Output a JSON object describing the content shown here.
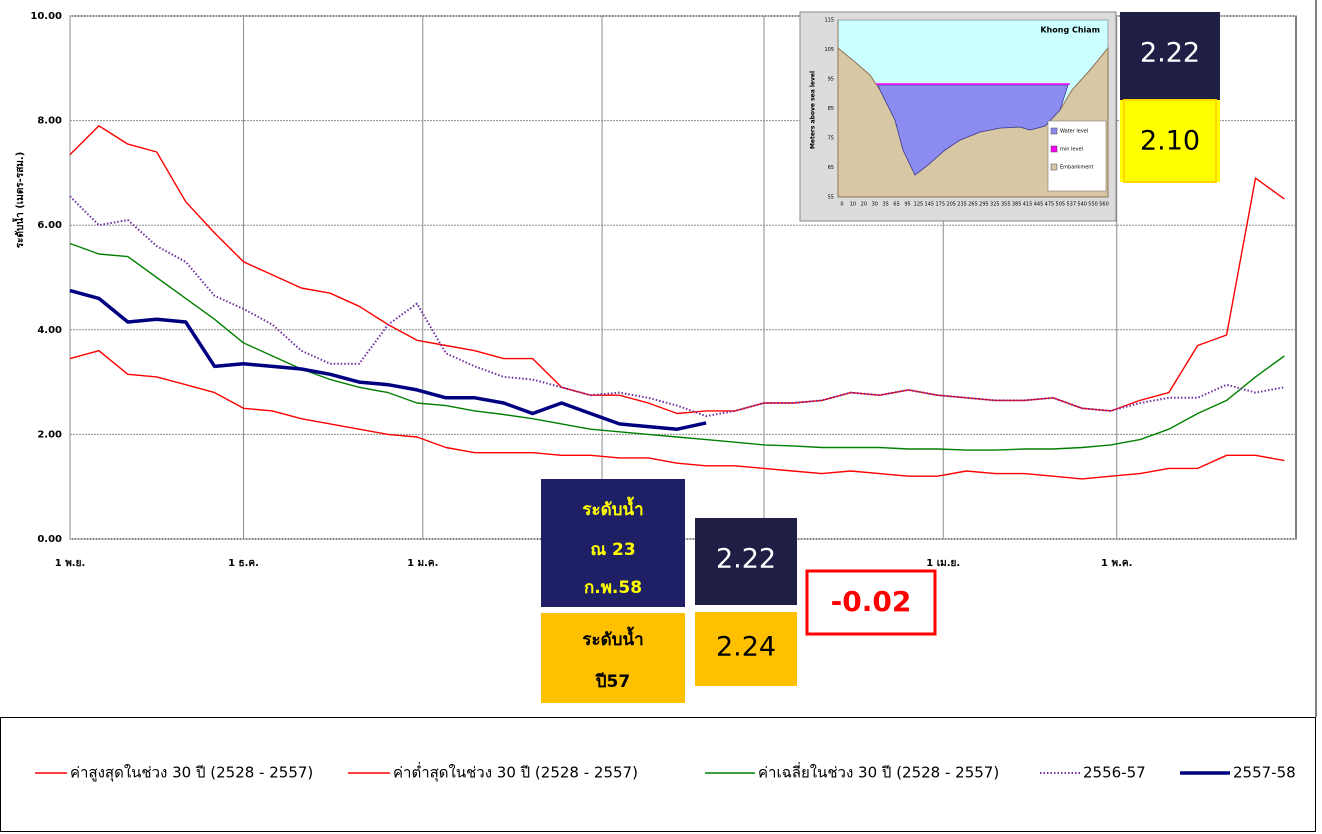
{
  "chart_data": {
    "type": "line",
    "y_label": "ระดับน้ำ (เมตร-รสม.)",
    "x": [
      0,
      5,
      10,
      15,
      20,
      25,
      30,
      35,
      40,
      45,
      50,
      55,
      60,
      65,
      70,
      75,
      80,
      85,
      90,
      95,
      100,
      105,
      110,
      115,
      120,
      125,
      130,
      135,
      140,
      145,
      150,
      155,
      160,
      165,
      170,
      175,
      180,
      185,
      190,
      195,
      200,
      205,
      210
    ],
    "xlim": [
      0,
      212
    ],
    "xticks": [
      {
        "value": 0,
        "label": "1 พ.ย."
      },
      {
        "value": 30,
        "label": "1 ธ.ค."
      },
      {
        "value": 61,
        "label": "1 ม.ค."
      },
      {
        "value": 92,
        "label": null
      },
      {
        "value": 120,
        "label": null
      },
      {
        "value": 151,
        "label": "1 เม.ย."
      },
      {
        "value": 181,
        "label": "1 พ.ค."
      }
    ],
    "ylim": [
      0,
      10
    ],
    "yticks": [
      {
        "value": 0,
        "label": "0.00"
      },
      {
        "value": 2,
        "label": "2.00"
      },
      {
        "value": 4,
        "label": "4.00"
      },
      {
        "value": 6,
        "label": "6.00"
      },
      {
        "value": 8,
        "label": "8.00"
      },
      {
        "value": 10,
        "label": "10.00"
      }
    ],
    "grid": true,
    "series": [
      {
        "name": "ค่าสูงสุดในช่วง 30 ปี (2528 - 2557)",
        "color": "#ff0000",
        "line_style": "solid",
        "values": [
          7.35,
          7.9,
          7.55,
          7.4,
          6.45,
          5.85,
          5.3,
          5.05,
          4.8,
          4.7,
          4.45,
          4.1,
          3.8,
          3.7,
          3.6,
          3.45,
          3.45,
          2.9,
          2.75,
          2.75,
          2.6,
          2.4,
          2.45,
          2.45,
          2.6,
          2.6,
          2.65,
          2.8,
          2.75,
          2.85,
          2.75,
          2.7,
          2.65,
          2.65,
          2.7,
          2.5,
          2.45,
          2.65,
          2.8,
          3.7,
          3.9,
          6.9,
          6.5
        ]
      },
      {
        "name": "ค่าต่ำสุดในช่วง 30 ปี (2528 - 2557)",
        "color": "#ff0000",
        "line_style": "solid",
        "values": [
          3.45,
          3.6,
          3.15,
          3.1,
          2.95,
          2.8,
          2.5,
          2.45,
          2.3,
          2.2,
          2.1,
          2.0,
          1.95,
          1.75,
          1.65,
          1.65,
          1.65,
          1.6,
          1.6,
          1.55,
          1.55,
          1.45,
          1.4,
          1.4,
          1.35,
          1.3,
          1.25,
          1.3,
          1.25,
          1.2,
          1.2,
          1.3,
          1.25,
          1.25,
          1.2,
          1.15,
          1.2,
          1.25,
          1.35,
          1.35,
          1.6,
          1.6,
          1.5
        ]
      },
      {
        "name": "ค่าเฉลี่ยในช่วง 30 ปี (2528 - 2557)",
        "color": "#008000",
        "line_style": "solid",
        "values": [
          5.65,
          5.45,
          5.4,
          5.0,
          4.6,
          4.2,
          3.75,
          3.5,
          3.25,
          3.05,
          2.9,
          2.8,
          2.6,
          2.55,
          2.45,
          2.38,
          2.3,
          2.2,
          2.1,
          2.05,
          2.0,
          1.95,
          1.9,
          1.85,
          1.8,
          1.78,
          1.75,
          1.75,
          1.75,
          1.72,
          1.72,
          1.7,
          1.7,
          1.72,
          1.72,
          1.75,
          1.8,
          1.9,
          2.1,
          2.4,
          2.65,
          3.1,
          3.5
        ]
      },
      {
        "name": "2556-57",
        "color": "#7030a0",
        "line_style": "dotted",
        "values": [
          6.55,
          6.0,
          6.1,
          5.6,
          5.3,
          4.65,
          4.4,
          4.1,
          3.6,
          3.35,
          3.35,
          4.1,
          4.5,
          3.55,
          3.3,
          3.1,
          3.05,
          2.9,
          2.75,
          2.8,
          2.7,
          2.55,
          2.35,
          2.45,
          2.6,
          2.6,
          2.65,
          2.8,
          2.75,
          2.85,
          2.75,
          2.7,
          2.65,
          2.65,
          2.7,
          2.5,
          2.45,
          2.6,
          2.7,
          2.7,
          2.95,
          2.8,
          2.9
        ]
      },
      {
        "name": "2557-58",
        "color": "#000080",
        "line_style": "bold",
        "values": [
          4.75,
          4.6,
          4.15,
          4.2,
          4.15,
          3.3,
          3.35,
          3.3,
          3.25,
          3.15,
          3.0,
          2.95,
          2.85,
          2.7,
          2.7,
          2.6,
          2.4,
          2.6,
          2.4,
          2.2,
          2.15,
          2.1,
          2.22,
          null,
          null,
          null,
          null,
          null,
          null,
          null,
          null,
          null,
          null,
          null,
          null,
          null,
          null,
          null,
          null,
          null,
          null,
          null,
          null
        ]
      }
    ]
  },
  "inset": {
    "title": "Khong Chiam",
    "y_label": "Meters above sea level",
    "yticks": [
      "115",
      "105",
      "95",
      "85",
      "75",
      "65",
      "55"
    ],
    "xticks": [
      "0",
      "10",
      "20",
      "30",
      "35",
      "65",
      "95",
      "125",
      "145",
      "175",
      "205",
      "235",
      "265",
      "295",
      "325",
      "355",
      "385",
      "415",
      "445",
      "475",
      "505",
      "537",
      "540",
      "550",
      "560"
    ],
    "legend": [
      "Water level",
      "min level",
      "Embankment"
    ]
  },
  "panels": {
    "top_current": "2.22",
    "top_last": "2.10",
    "current_label": [
      "ระดับน้ำ",
      "ณ 23",
      "ก.พ.58"
    ],
    "current": "2.22",
    "last_label": [
      "ระดับน้ำ",
      "ปี57"
    ],
    "last": "2.24",
    "difference": "-0.02"
  }
}
